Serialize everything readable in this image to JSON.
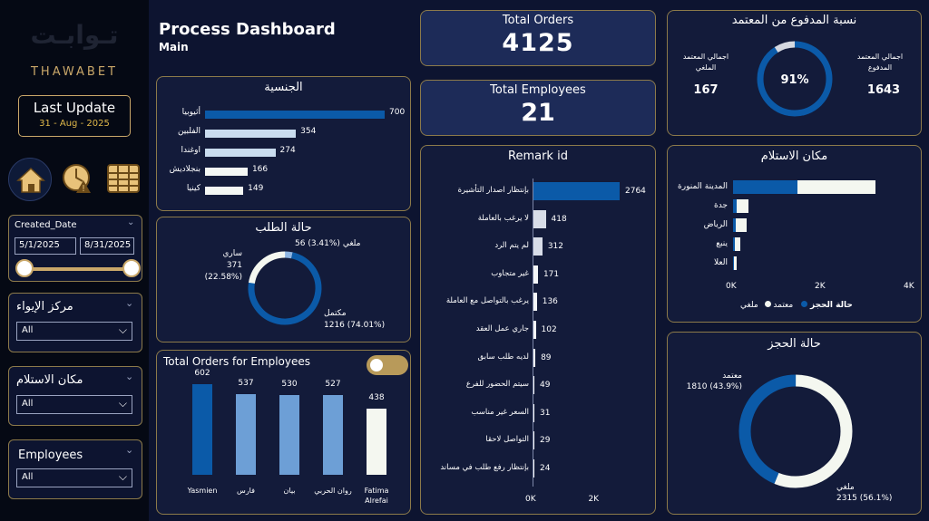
{
  "brand": {
    "logo_text": "تـوابـت",
    "name": "THAWABET"
  },
  "last_update": {
    "label": "Last Update",
    "date": "31 - Aug - 2025"
  },
  "nav_icons": [
    "home-icon",
    "clock-alert-icon",
    "table-icon"
  ],
  "date_filter": {
    "label": "Created_Date",
    "start": "5/1/2025",
    "end": "8/31/2025"
  },
  "filters": [
    {
      "label": "مركز الإيواء",
      "value": "All"
    },
    {
      "label": "مكان الاستلام",
      "value": "All"
    },
    {
      "label": "Employees",
      "value": "All"
    }
  ],
  "header": {
    "title": "Process Dashboard",
    "subtitle": "Main"
  },
  "kpis": {
    "total_orders": {
      "label": "Total Orders",
      "value": "4125"
    },
    "total_employees": {
      "label": "Total Employees",
      "value": "21"
    }
  },
  "paid_card": {
    "title": "نسبة المدفوع من المعتمد",
    "right_label": "اجمالي المعتمد المدفوع",
    "right_value": "1643",
    "left_label": "اجمالي المعتمد الملغي",
    "left_value": "167",
    "percent_label": "91%",
    "percent": 0.91,
    "colors": {
      "main": "#0b5aa8",
      "rest": "#d6d9e0"
    }
  },
  "nationality": {
    "title": "الجنسية",
    "max": 700,
    "items": [
      {
        "label": "أثيوبيا",
        "value": 700,
        "value_label": "700",
        "color": "#0b5aa8"
      },
      {
        "label": "الفلبين",
        "value": 354,
        "value_label": "354",
        "color": "#c9dcef"
      },
      {
        "label": "اوغندا",
        "value": 274,
        "value_label": "274",
        "color": "#c9dcef"
      },
      {
        "label": "بنجلاديش",
        "value": 166,
        "value_label": "166",
        "color": "#f4f7f4"
      },
      {
        "label": "كينيا",
        "value": 149,
        "value_label": "149",
        "color": "#f4f7f4"
      }
    ]
  },
  "order_status": {
    "title": "حالة الطلب",
    "slices": [
      {
        "name": "مكتمل",
        "value": 1216,
        "label": "1216 (74.01%)",
        "color": "#0b5aa8"
      },
      {
        "name": "ساري",
        "value": 371,
        "label": "371 (22.58%)",
        "color": "#f4f7f0"
      },
      {
        "name": "ملغي",
        "value": 56,
        "label": "56 (3.41%)",
        "color": "#8fb6e2"
      }
    ]
  },
  "employees_chart": {
    "title": "Total Orders for Employees",
    "max": 602,
    "bars": [
      {
        "name": "Yasmien",
        "value": 602,
        "value_label": "602",
        "color": "#0b5aa8"
      },
      {
        "name": "فارس",
        "value": 537,
        "value_label": "537",
        "color": "#6d9fd6"
      },
      {
        "name": "بيان",
        "value": 530,
        "value_label": "530",
        "color": "#6d9fd6"
      },
      {
        "name": "روان الحربي",
        "value": 527,
        "value_label": "527",
        "color": "#6d9fd6"
      },
      {
        "name": "Fatima Alrefai",
        "value": 438,
        "value_label": "438",
        "color": "#f4f7f0"
      }
    ]
  },
  "remark": {
    "title": "Remark id",
    "max": 2764,
    "axis_max": 2764,
    "ticks": [
      "0K",
      "2K"
    ],
    "items": [
      {
        "label": "بإنتظار اصدار التأشيرة",
        "value": 2764,
        "value_label": "2764",
        "color": "#0b5aa8"
      },
      {
        "label": "لا يرغب بالعاملة",
        "value": 418,
        "value_label": "418",
        "color": "#d8dde8"
      },
      {
        "label": "لم يتم الرد",
        "value": 312,
        "value_label": "312",
        "color": "#d8dde8"
      },
      {
        "label": "غير متجاوب",
        "value": 171,
        "value_label": "171",
        "color": "#f4f6f8"
      },
      {
        "label": "يرغب بالتواصل مع العاملة",
        "value": 136,
        "value_label": "136",
        "color": "#f4f6f8"
      },
      {
        "label": "جاري عمل العقد",
        "value": 102,
        "value_label": "102",
        "color": "#f4f6f8"
      },
      {
        "label": "لديه طلب سابق",
        "value": 89,
        "value_label": "89",
        "color": "#f4f6f8"
      },
      {
        "label": "سيتم الحضور للفرع",
        "value": 49,
        "value_label": "49",
        "color": "#f4f6f8"
      },
      {
        "label": "السعر غير مناسب",
        "value": 31,
        "value_label": "31",
        "color": "#f4f6f8"
      },
      {
        "label": "التواصل لاحقا",
        "value": 29,
        "value_label": "29",
        "color": "#f4f6f8"
      },
      {
        "label": "بإنتظار رفع طلب في مساند",
        "value": 24,
        "value_label": "24",
        "color": "#f4f6f8"
      }
    ]
  },
  "pickup": {
    "title": "مكان الاستلام",
    "axis_max": 4000,
    "ticks": [
      "0K",
      "2K",
      "4K"
    ],
    "legend_title": "حالة الحجز",
    "legend": [
      {
        "name": "معتمد",
        "color": "#0b5aa8"
      },
      {
        "name": "ملغي",
        "color": "#f4f7f0"
      }
    ],
    "items": [
      {
        "label": "المدينة المنورة",
        "approved": 1450,
        "cancelled": 1750
      },
      {
        "label": "جدة",
        "approved": 90,
        "cancelled": 250
      },
      {
        "label": "الرياض",
        "approved": 70,
        "cancelled": 230
      },
      {
        "label": "ينبع",
        "approved": 40,
        "cancelled": 120
      },
      {
        "label": "العلا",
        "approved": 20,
        "cancelled": 60
      }
    ]
  },
  "booking_status": {
    "title": "حالة الحجز",
    "slices": [
      {
        "name": "معتمد",
        "value": 1810,
        "label": "1810 (43.9%)",
        "color": "#0b5aa8"
      },
      {
        "name": "ملغي",
        "value": 2315,
        "label": "2315 (56.1%)",
        "color": "#f4f7f0"
      }
    ]
  },
  "chart_data": [
    {
      "type": "bar",
      "title": "الجنسية",
      "categories": [
        "أثيوبيا",
        "الفلبين",
        "اوغندا",
        "بنجلاديش",
        "كينيا"
      ],
      "values": [
        700,
        354,
        274,
        166,
        149
      ]
    },
    {
      "type": "pie",
      "title": "حالة الطلب",
      "categories": [
        "مكتمل",
        "ساري",
        "ملغي"
      ],
      "values": [
        1216,
        371,
        56
      ]
    },
    {
      "type": "bar",
      "title": "Total Orders for Employees",
      "categories": [
        "Yasmien",
        "فارس",
        "بيان",
        "روان الحربي",
        "Fatima Alrefai"
      ],
      "values": [
        602,
        537,
        530,
        527,
        438
      ]
    },
    {
      "type": "bar",
      "title": "Remark id",
      "categories": [
        "بإنتظار اصدار التأشيرة",
        "لا يرغب بالعاملة",
        "لم يتم الرد",
        "غير متجاوب",
        "يرغب بالتواصل مع العاملة",
        "جاري عمل العقد",
        "لديه طلب سابق",
        "سيتم الحضور للفرع",
        "السعر غير مناسب",
        "التواصل لاحقا",
        "بإنتظار رفع طلب في مساند"
      ],
      "values": [
        2764,
        418,
        312,
        171,
        136,
        102,
        89,
        49,
        31,
        29,
        24
      ]
    },
    {
      "type": "bar",
      "title": "مكان الاستلام",
      "categories": [
        "المدينة المنورة",
        "جدة",
        "الرياض",
        "ينبع",
        "العلا"
      ],
      "series": [
        {
          "name": "معتمد",
          "values": [
            1450,
            90,
            70,
            40,
            20
          ]
        },
        {
          "name": "ملغي",
          "values": [
            1750,
            250,
            230,
            120,
            60
          ]
        }
      ],
      "ylim": [
        0,
        4000
      ]
    },
    {
      "type": "pie",
      "title": "حالة الحجز",
      "categories": [
        "معتمد",
        "ملغي"
      ],
      "values": [
        1810,
        2315
      ]
    },
    {
      "type": "pie",
      "title": "نسبة المدفوع من المعتمد",
      "categories": [
        "paid"
      ],
      "values": [
        0.91
      ]
    }
  ]
}
